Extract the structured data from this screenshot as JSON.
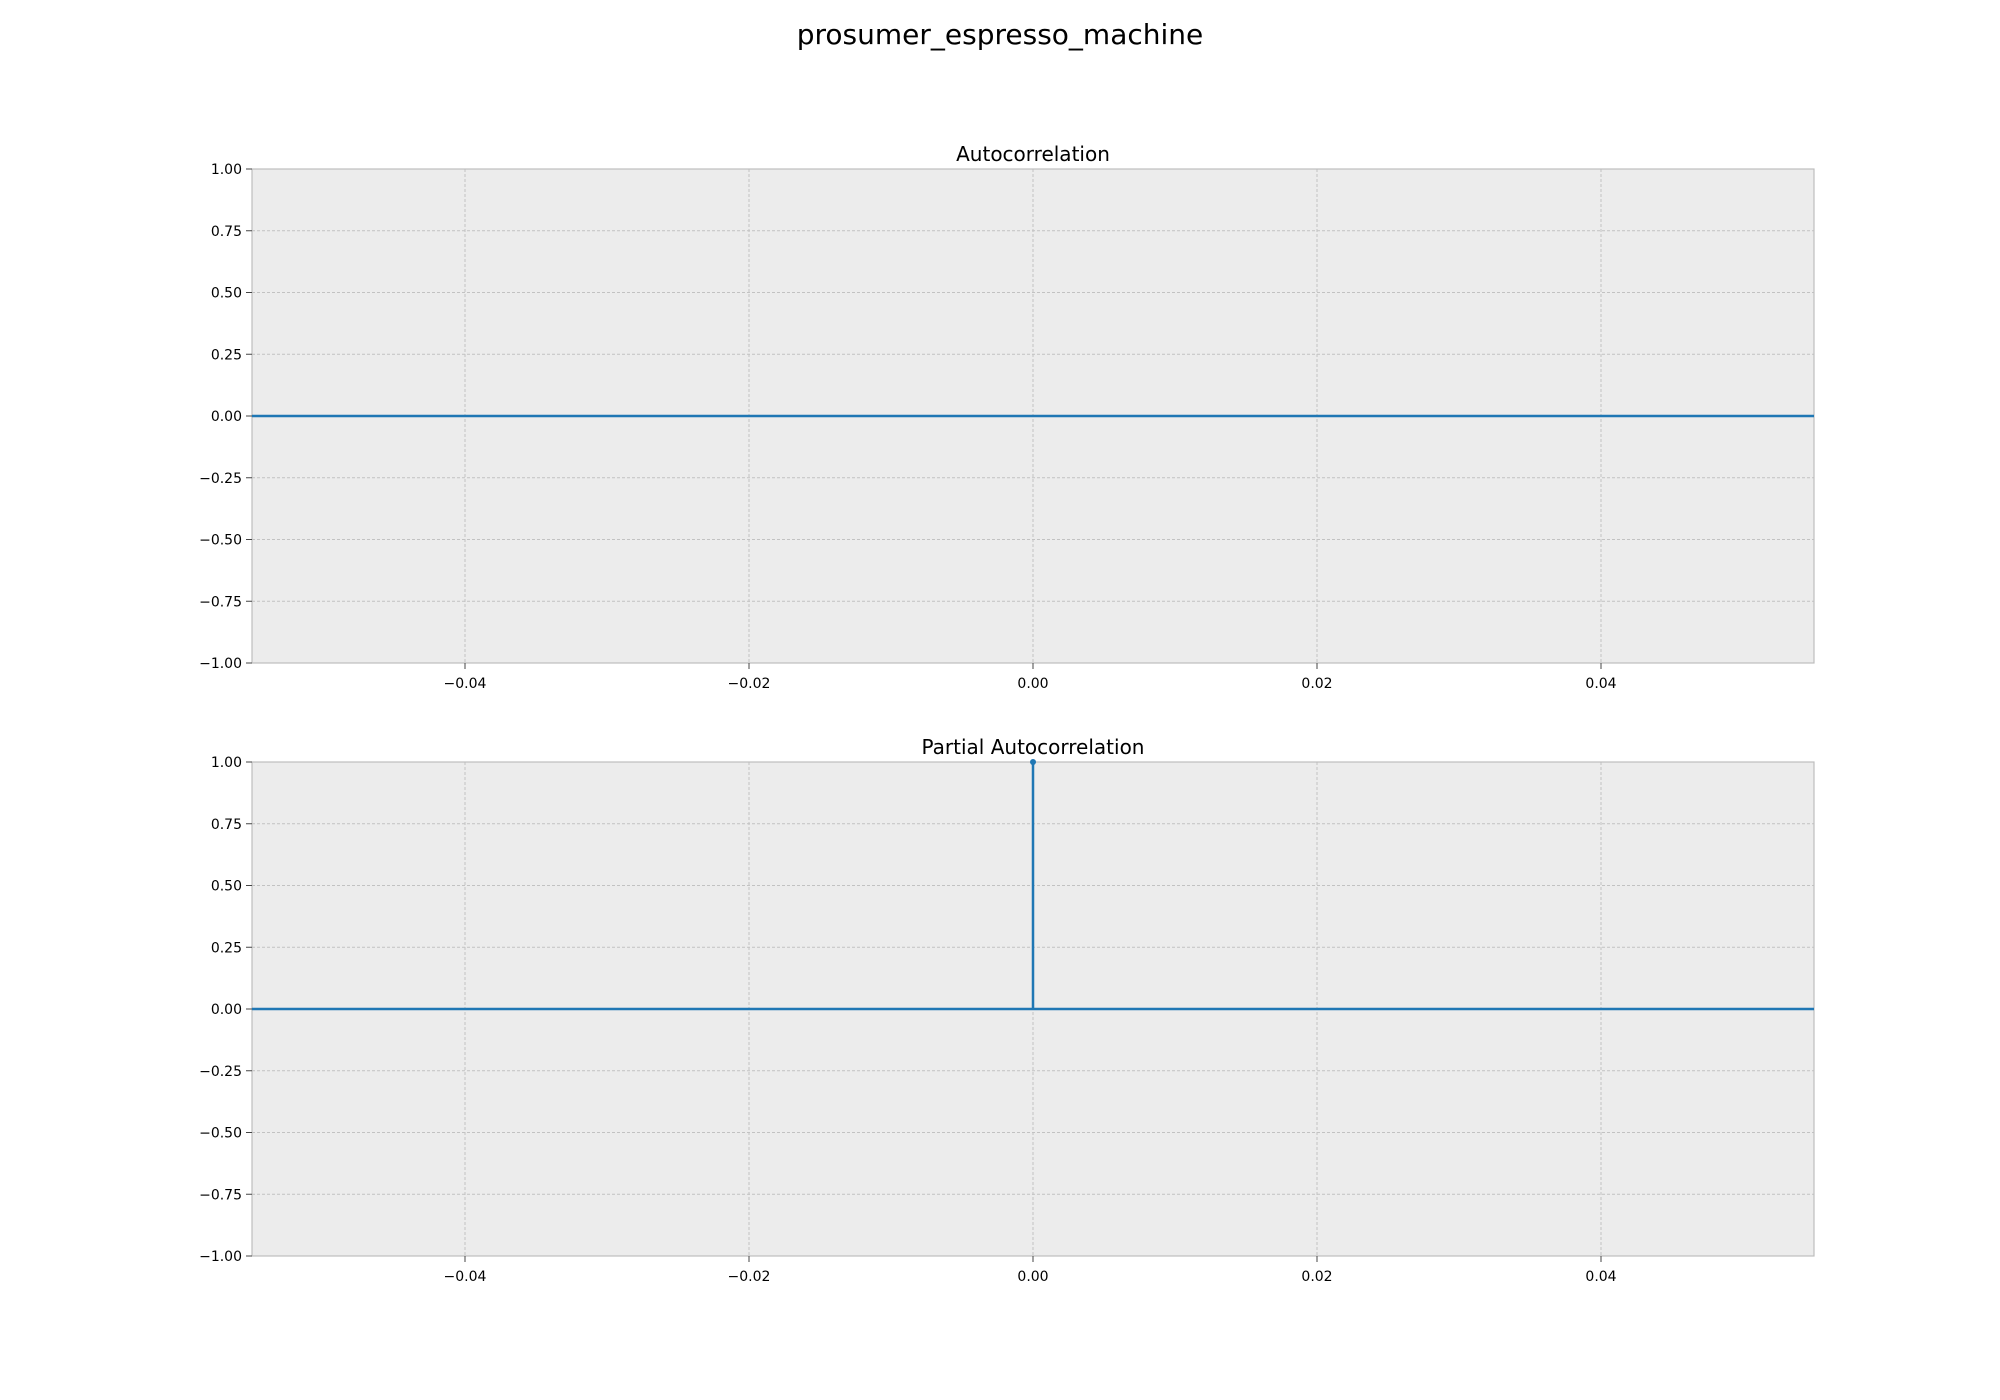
{
  "figure_title": "prosumer_espresso_machine",
  "colors": {
    "series": "#1f77b4",
    "panel_background": "#ececec",
    "grid": "#c2c2c2",
    "axis_edge": "#bdbdbd"
  },
  "chart_data": [
    {
      "type": "stem",
      "title": "Autocorrelation",
      "xlabel": "",
      "ylabel": "",
      "xlim": [
        -0.055,
        0.055
      ],
      "ylim": [
        -1.0,
        1.0
      ],
      "x_ticks": [
        -0.04,
        -0.02,
        0.0,
        0.02,
        0.04
      ],
      "x_tick_labels": [
        "−0.04",
        "−0.02",
        "0.00",
        "0.02",
        "0.04"
      ],
      "y_ticks": [
        1.0,
        0.75,
        0.5,
        0.25,
        0.0,
        -0.25,
        -0.5,
        -0.75,
        -1.0
      ],
      "y_tick_labels": [
        "1.00",
        "0.75",
        "0.50",
        "0.25",
        "0.00",
        "−0.25",
        "−0.50",
        "−0.75",
        "−1.00"
      ],
      "grid": true,
      "baseline": 0.0,
      "stems": []
    },
    {
      "type": "stem",
      "title": "Partial Autocorrelation",
      "xlabel": "",
      "ylabel": "",
      "xlim": [
        -0.055,
        0.055
      ],
      "ylim": [
        -1.0,
        1.0
      ],
      "x_ticks": [
        -0.04,
        -0.02,
        0.0,
        0.02,
        0.04
      ],
      "x_tick_labels": [
        "−0.04",
        "−0.02",
        "0.00",
        "0.02",
        "0.04"
      ],
      "y_ticks": [
        1.0,
        0.75,
        0.5,
        0.25,
        0.0,
        -0.25,
        -0.5,
        -0.75,
        -1.0
      ],
      "y_tick_labels": [
        "1.00",
        "0.75",
        "0.50",
        "0.25",
        "0.00",
        "−0.25",
        "−0.50",
        "−0.75",
        "−1.00"
      ],
      "grid": true,
      "baseline": 0.0,
      "stems": [
        {
          "x": 0.0,
          "y": 1.0
        }
      ]
    }
  ]
}
